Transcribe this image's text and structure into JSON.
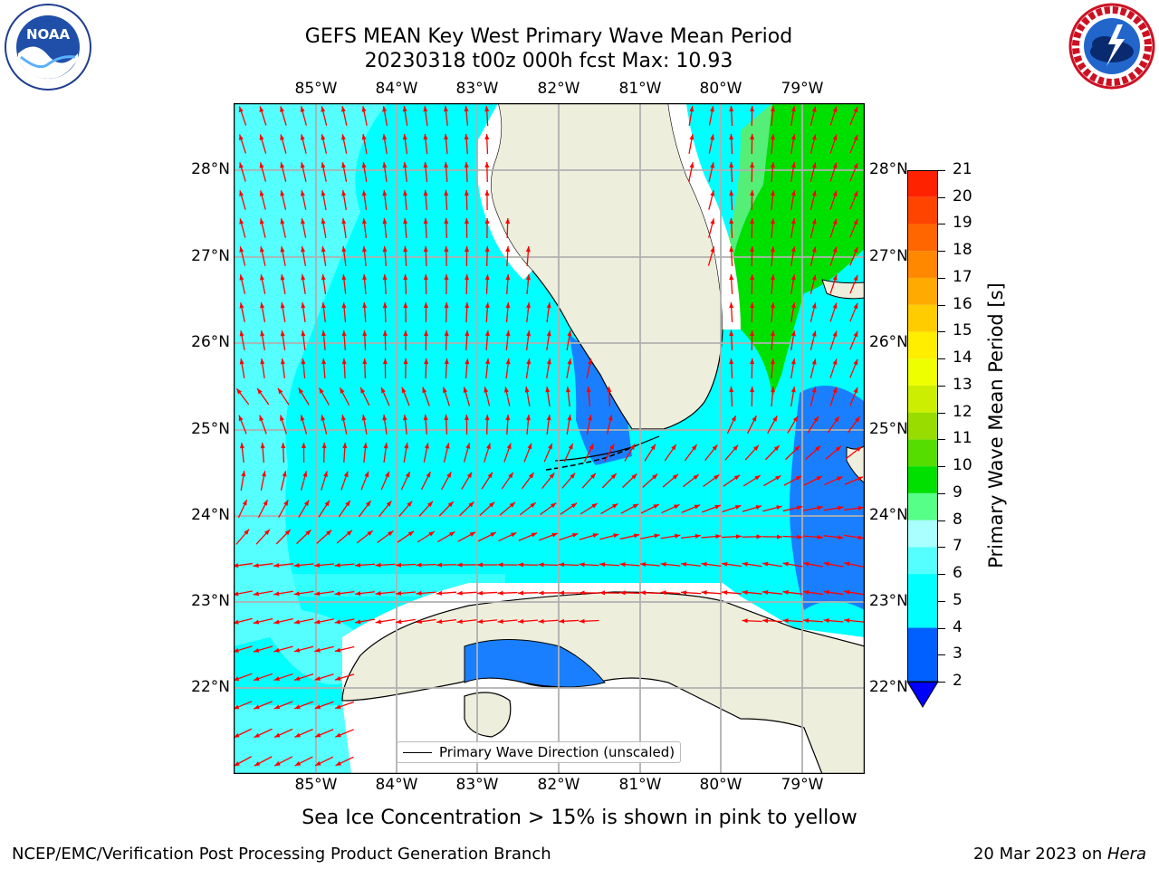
{
  "title": {
    "line1": "GEFS MEAN Key West Primary Wave Mean Period",
    "line2": "20230318 t00z 000h fcst   Max: 10.93"
  },
  "logos": {
    "left": {
      "name": "noaa-logo",
      "text": "NOAA"
    },
    "right": {
      "name": "nws-logo",
      "text": "NATIONAL WEATHER SERVICE"
    }
  },
  "map": {
    "lon_ticks": [
      "85°W",
      "84°W",
      "83°W",
      "82°W",
      "81°W",
      "80°W",
      "79°W"
    ],
    "lat_ticks": [
      "28°N",
      "27°N",
      "26°N",
      "25°N",
      "24°N",
      "23°N",
      "22°N"
    ],
    "legend_label": "Primary Wave Direction (unscaled)",
    "colors": {
      "land": "#eeeedd",
      "ocean_light": "#55ffff",
      "ocean_cyan": "#00ffff",
      "ocean_blue": "#1a7fff",
      "green": "#00e000",
      "green_light": "#55ee77",
      "arrow": "#ff0000",
      "grid": "#b0b0b0"
    }
  },
  "colorbar": {
    "label": "Primary Wave Mean Period [s]",
    "ticks": [
      "21",
      "20",
      "19",
      "18",
      "17",
      "16",
      "15",
      "14",
      "13",
      "12",
      "11",
      "10",
      "9",
      "8",
      "7",
      "6",
      "5",
      "4",
      "3",
      "2"
    ],
    "colors_bottom_to_top": [
      "#0060ff",
      "#00ffff",
      "#55ffff",
      "#aaffff",
      "#55ff88",
      "#00e000",
      "#55dd00",
      "#99dd00",
      "#ccee00",
      "#eeff00",
      "#ffee00",
      "#ffcc00",
      "#ffaa00",
      "#ff8800",
      "#ff6600",
      "#ff4400",
      "#ff2200",
      "#ff0000"
    ],
    "extend_color": "#0000ff"
  },
  "note": "Sea Ice Concentration > 15% is shown in pink to yellow",
  "footer": {
    "left": "NCEP/EMC/Verification Post Processing Product Generation Branch",
    "right_date": "20 Mar 2023 on ",
    "right_host": "Hera"
  }
}
